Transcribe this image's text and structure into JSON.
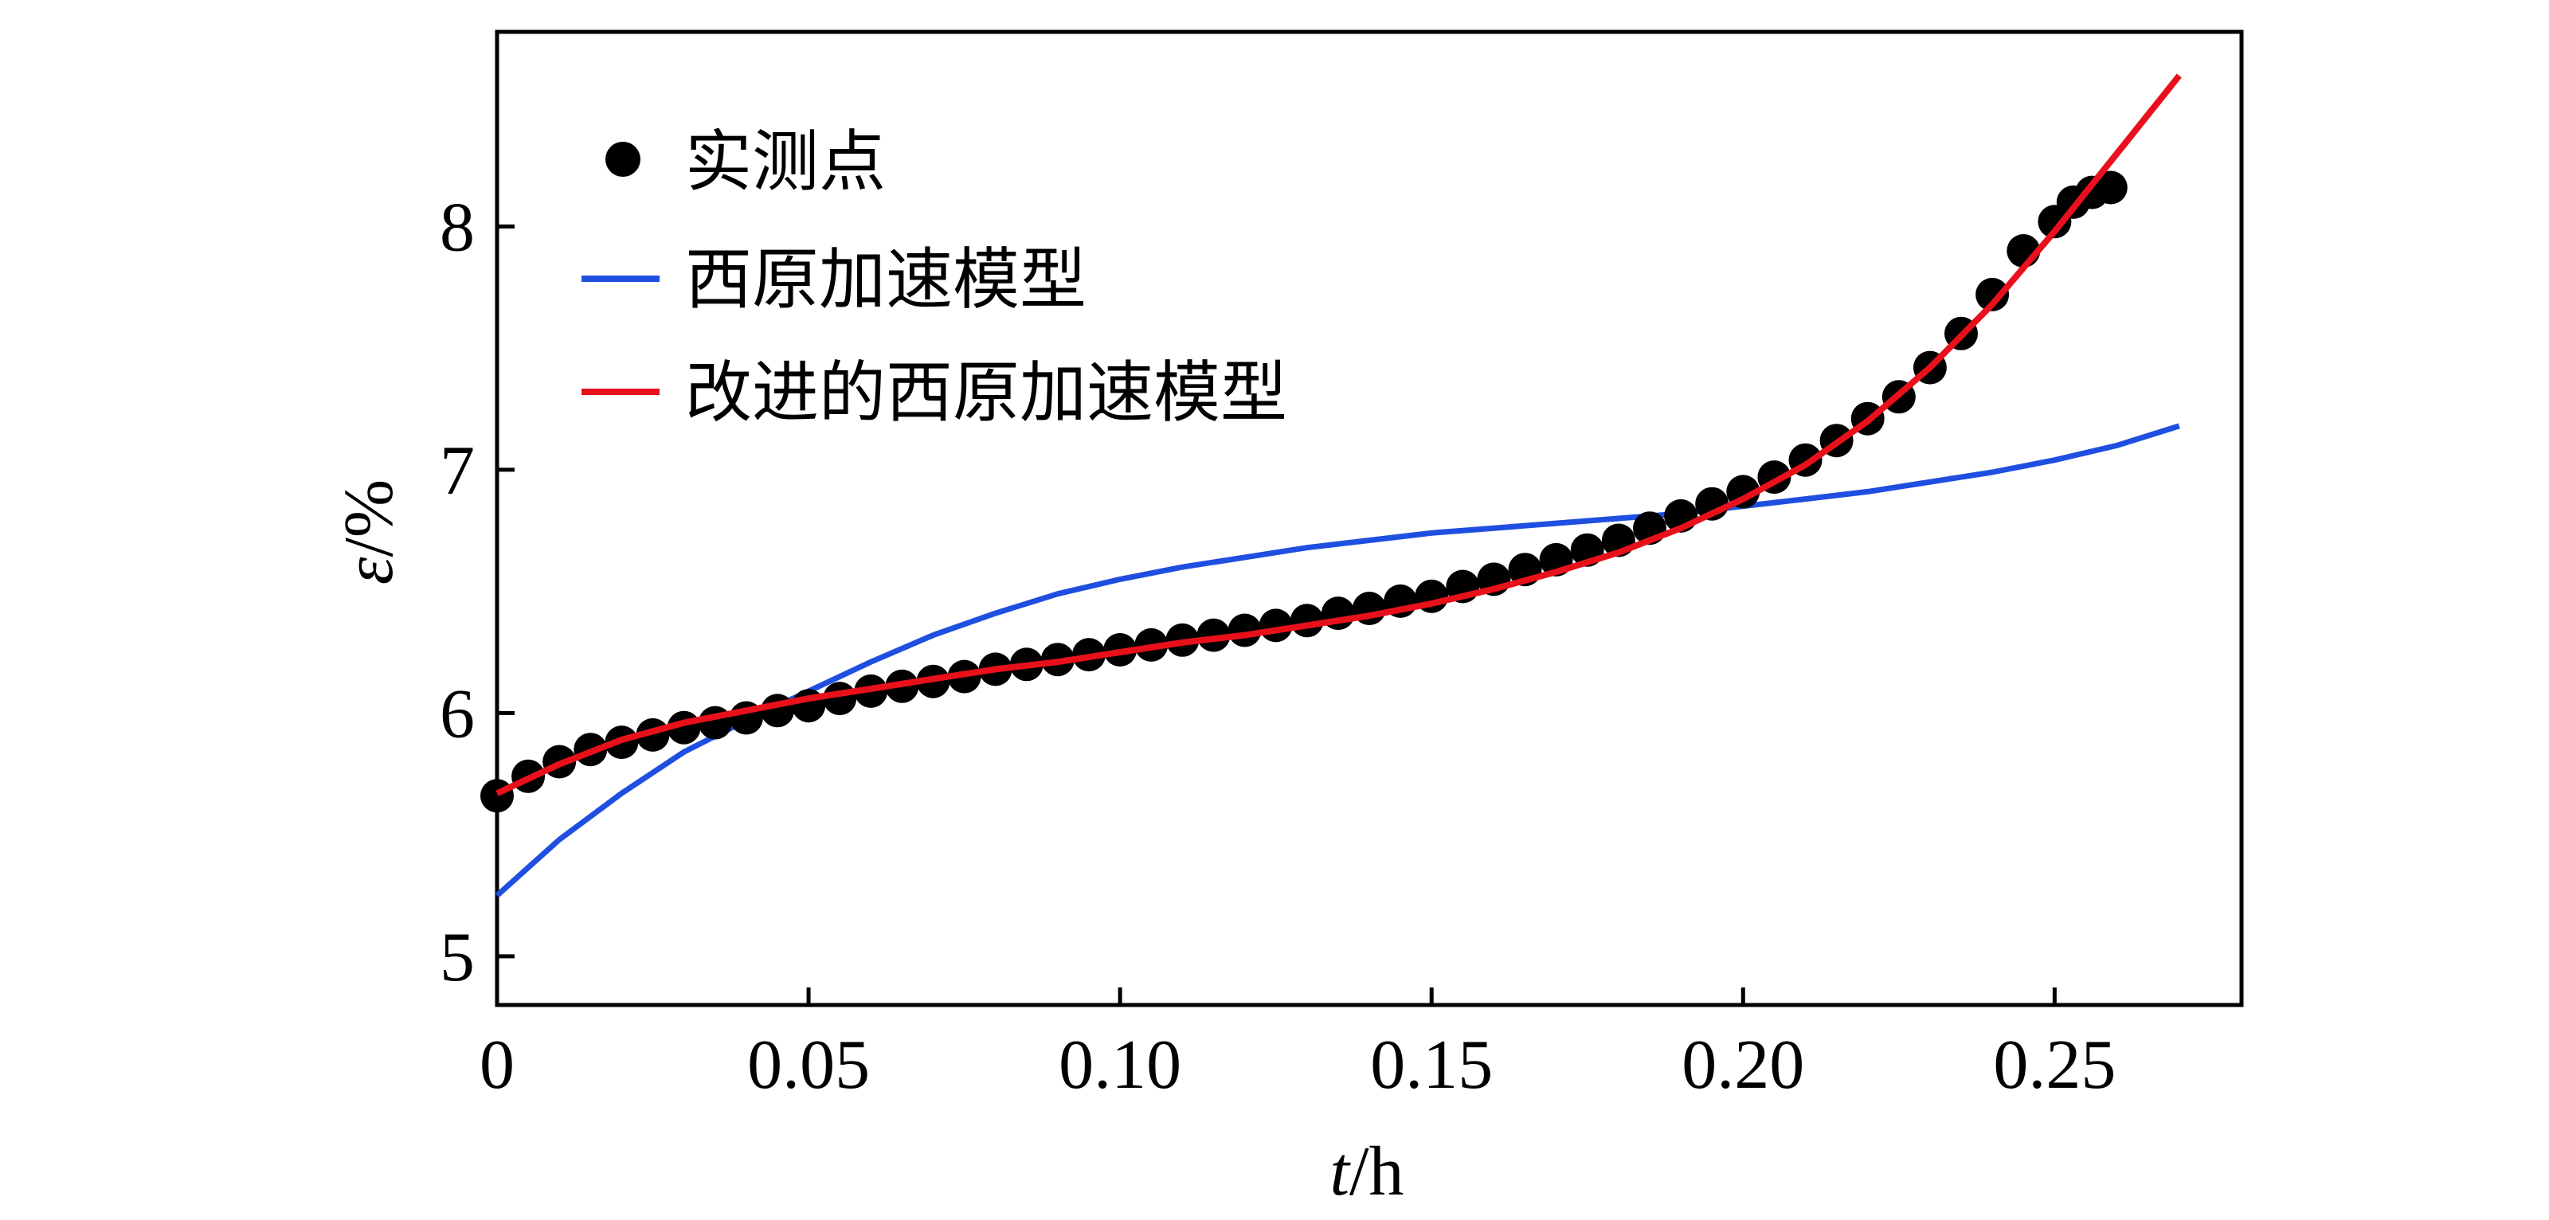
{
  "chart_data": {
    "type": "scatter",
    "xlabel_var": "t",
    "xlabel_unit": "/h",
    "ylabel_var": "ε",
    "ylabel_unit": "/%",
    "xlim": [
      0,
      0.28
    ],
    "ylim": [
      4.8,
      8.8
    ],
    "x_ticks": [
      0,
      0.05,
      0.1,
      0.15,
      0.2,
      0.25
    ],
    "x_tick_labels": [
      "0",
      "0.05",
      "0.10",
      "0.15",
      "0.20",
      "0.25"
    ],
    "y_ticks": [
      5,
      6,
      7,
      8
    ],
    "y_tick_labels": [
      "5",
      "6",
      "7",
      "8"
    ],
    "grid": false,
    "legend_position": "top-left",
    "series": [
      {
        "name": "实测点",
        "kind": "scatter",
        "color": "#000000",
        "x": [
          0,
          0.005,
          0.01,
          0.015,
          0.02,
          0.025,
          0.03,
          0.035,
          0.04,
          0.045,
          0.05,
          0.055,
          0.06,
          0.065,
          0.07,
          0.075,
          0.08,
          0.085,
          0.09,
          0.095,
          0.1,
          0.105,
          0.11,
          0.115,
          0.12,
          0.125,
          0.13,
          0.135,
          0.14,
          0.145,
          0.15,
          0.155,
          0.16,
          0.165,
          0.17,
          0.175,
          0.18,
          0.185,
          0.19,
          0.195,
          0.2,
          0.205,
          0.21,
          0.215,
          0.22,
          0.225,
          0.23,
          0.235,
          0.24,
          0.245,
          0.25,
          0.253,
          0.256,
          0.259
        ],
        "y": [
          5.66,
          5.74,
          5.8,
          5.85,
          5.88,
          5.91,
          5.94,
          5.96,
          5.98,
          6.01,
          6.03,
          6.06,
          6.09,
          6.11,
          6.13,
          6.15,
          6.18,
          6.2,
          6.22,
          6.24,
          6.26,
          6.28,
          6.3,
          6.32,
          6.34,
          6.36,
          6.38,
          6.41,
          6.43,
          6.46,
          6.48,
          6.52,
          6.55,
          6.59,
          6.63,
          6.67,
          6.71,
          6.76,
          6.81,
          6.86,
          6.91,
          6.97,
          7.04,
          7.12,
          7.21,
          7.3,
          7.42,
          7.56,
          7.72,
          7.9,
          8.02,
          8.1,
          8.14,
          8.16
        ]
      },
      {
        "name": "西原加速模型",
        "kind": "line",
        "color": "#1f4fe0",
        "x": [
          0,
          0.01,
          0.02,
          0.03,
          0.04,
          0.05,
          0.06,
          0.07,
          0.08,
          0.09,
          0.1,
          0.11,
          0.12,
          0.13,
          0.14,
          0.15,
          0.16,
          0.17,
          0.18,
          0.19,
          0.2,
          0.21,
          0.22,
          0.23,
          0.24,
          0.25,
          0.26,
          0.27
        ],
        "y": [
          5.25,
          5.48,
          5.67,
          5.84,
          5.97,
          6.09,
          6.21,
          6.32,
          6.41,
          6.49,
          6.55,
          6.6,
          6.64,
          6.68,
          6.71,
          6.74,
          6.76,
          6.78,
          6.8,
          6.82,
          6.85,
          6.88,
          6.91,
          6.95,
          6.99,
          7.04,
          7.1,
          7.18
        ]
      },
      {
        "name": "改进的西原加速模型",
        "kind": "line",
        "color": "#e8101a",
        "x": [
          0,
          0.01,
          0.02,
          0.03,
          0.04,
          0.05,
          0.06,
          0.07,
          0.08,
          0.09,
          0.1,
          0.11,
          0.12,
          0.13,
          0.14,
          0.15,
          0.16,
          0.17,
          0.18,
          0.19,
          0.2,
          0.21,
          0.22,
          0.23,
          0.24,
          0.25,
          0.26,
          0.27
        ],
        "y": [
          5.67,
          5.79,
          5.89,
          5.96,
          6.01,
          6.06,
          6.1,
          6.14,
          6.18,
          6.21,
          6.25,
          6.29,
          6.32,
          6.36,
          6.4,
          6.45,
          6.51,
          6.58,
          6.66,
          6.76,
          6.88,
          7.02,
          7.2,
          7.42,
          7.68,
          7.98,
          8.3,
          8.62
        ]
      }
    ]
  }
}
